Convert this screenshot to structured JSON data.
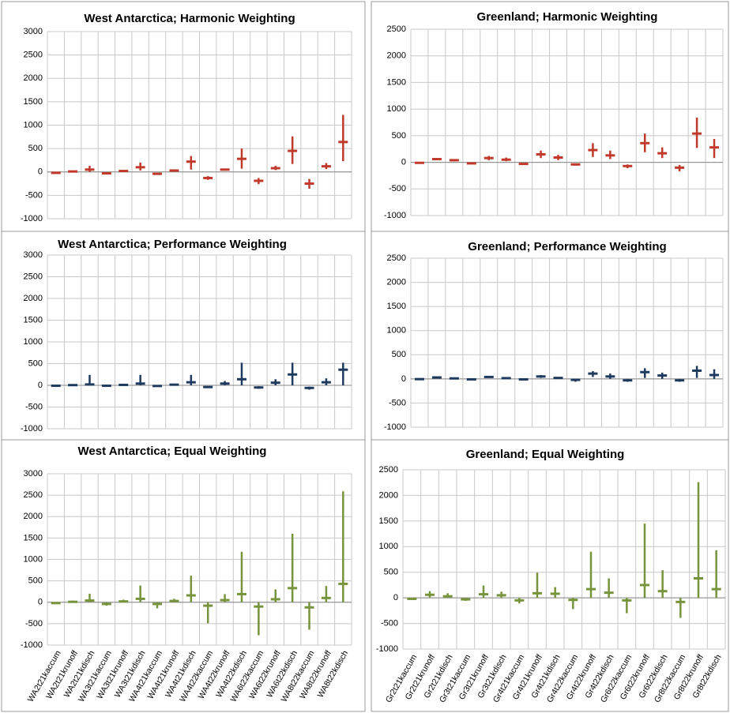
{
  "chart_data": [
    {
      "type": "errorbar",
      "title": "West Antarctica; Harmonic Weighting",
      "color": "#c0392b",
      "values": [
        -20,
        10,
        50,
        -30,
        20,
        100,
        -40,
        30,
        220,
        -130,
        50,
        280,
        -190,
        80,
        450,
        -250,
        120,
        640
      ],
      "low": [
        -30,
        0,
        0,
        -40,
        15,
        30,
        -50,
        20,
        50,
        -170,
        30,
        70,
        -260,
        40,
        170,
        -360,
        60,
        230
      ],
      "high": [
        -10,
        20,
        130,
        -20,
        30,
        200,
        -30,
        40,
        340,
        -90,
        70,
        500,
        -130,
        130,
        760,
        -150,
        190,
        1220
      ],
      "ylim": [
        -1000,
        3000
      ],
      "yticks": [
        -1000,
        -500,
        0,
        500,
        1000,
        1500,
        2000,
        2500,
        3000
      ],
      "grid": true
    },
    {
      "type": "errorbar",
      "title": "Greenland; Harmonic Weighting",
      "color": "#c0392b",
      "values": [
        -10,
        60,
        40,
        -20,
        80,
        50,
        -30,
        150,
        90,
        -40,
        230,
        130,
        -70,
        360,
        170,
        -100,
        540,
        280
      ],
      "low": [
        -20,
        40,
        20,
        -30,
        40,
        20,
        -40,
        80,
        40,
        -60,
        100,
        60,
        -110,
        190,
        80,
        -170,
        270,
        80
      ],
      "high": [
        0,
        80,
        60,
        -10,
        120,
        90,
        -20,
        220,
        140,
        -20,
        360,
        220,
        -40,
        540,
        280,
        -50,
        840,
        440
      ],
      "ylim": [
        -1000,
        2500
      ],
      "yticks": [
        -1000,
        -500,
        0,
        500,
        1000,
        1500,
        2000,
        2500
      ],
      "grid": true
    },
    {
      "type": "errorbar",
      "title": "West Antarctica; Performance Weighting",
      "color": "#1f3a5f",
      "values": [
        -10,
        5,
        20,
        -10,
        10,
        40,
        -15,
        15,
        70,
        -40,
        40,
        140,
        -50,
        60,
        250,
        -60,
        70,
        360
      ],
      "low": [
        -20,
        0,
        0,
        -20,
        0,
        0,
        -20,
        0,
        0,
        -60,
        0,
        0,
        -80,
        0,
        0,
        -100,
        0,
        0
      ],
      "high": [
        0,
        10,
        240,
        0,
        20,
        240,
        0,
        30,
        240,
        -20,
        100,
        520,
        -20,
        140,
        520,
        -30,
        160,
        520
      ],
      "ylim": [
        -1000,
        3000
      ],
      "yticks": [
        -1000,
        -500,
        0,
        500,
        1000,
        1500,
        2000,
        2500,
        3000
      ],
      "grid": true
    },
    {
      "type": "errorbar",
      "title": "Greenland; Performance Weighting",
      "color": "#1f3a5f",
      "values": [
        -5,
        30,
        10,
        -10,
        40,
        15,
        -10,
        50,
        20,
        -20,
        110,
        50,
        -30,
        140,
        70,
        -30,
        170,
        80
      ],
      "low": [
        -10,
        10,
        0,
        -20,
        20,
        0,
        -20,
        20,
        0,
        -60,
        40,
        0,
        -60,
        20,
        0,
        -60,
        20,
        0
      ],
      "high": [
        0,
        40,
        20,
        0,
        60,
        30,
        0,
        80,
        40,
        0,
        160,
        110,
        0,
        220,
        130,
        0,
        270,
        200
      ],
      "ylim": [
        -1000,
        2500
      ],
      "yticks": [
        -1000,
        -500,
        0,
        500,
        1000,
        1500,
        2000,
        2500
      ],
      "grid": true
    },
    {
      "type": "errorbar",
      "title": "West Antarctica; Equal Weighting",
      "color": "#77933c",
      "categories": [
        "WA2t21kaccum",
        "WA2t21krunoff",
        "WA2t21kdisch",
        "WA3t21kaccum",
        "WA3t21krunoff",
        "WA3t21kdisch",
        "WA4t21kaccum",
        "WA4t21krunoff",
        "WA4t21kdisch",
        "WA4t22kaccum",
        "WA4t22krunoff",
        "WA4t22kdisch",
        "WA6t22kaccum",
        "WA6t22krunoff",
        "WA6t22kdisch",
        "WA8t22kaccum",
        "WA8t22krunoff",
        "WA8t22kdisch"
      ],
      "values": [
        -20,
        10,
        40,
        -40,
        20,
        80,
        -40,
        30,
        160,
        -80,
        50,
        190,
        -100,
        70,
        330,
        -120,
        100,
        430
      ],
      "low": [
        -40,
        0,
        0,
        -80,
        0,
        0,
        -140,
        0,
        0,
        -490,
        0,
        0,
        -770,
        0,
        0,
        -640,
        0,
        0
      ],
      "high": [
        0,
        40,
        200,
        0,
        60,
        390,
        0,
        80,
        620,
        0,
        190,
        1180,
        0,
        300,
        1600,
        0,
        380,
        2590
      ],
      "ylim": [
        -1000,
        3000
      ],
      "yticks": [
        -1000,
        -500,
        0,
        500,
        1000,
        1500,
        2000,
        2500,
        3000
      ],
      "grid": true
    },
    {
      "type": "errorbar",
      "title": "Greenland; Equal Weighting",
      "color": "#77933c",
      "categories": [
        "Gr2t21kaccum",
        "Gr2t21krunoff",
        "Gr2t21kdisch",
        "Gr3t21kaccum",
        "Gr3t21krunoff",
        "Gr3t21kdisch",
        "Gr4t21kaccum",
        "Gr4t21krunoff",
        "Gr4t21kdisch",
        "Gr4t22kaccum",
        "Gr4t22krunoff",
        "Gr4t22kdisch",
        "Gr6t22kaccum",
        "Gr6t22krunoff",
        "Gr6t22kdisch",
        "Gr8t22kaccum",
        "Gr8t22krunoff",
        "Gr8t22kdisch"
      ],
      "values": [
        -20,
        60,
        30,
        -30,
        70,
        50,
        -50,
        90,
        80,
        -40,
        170,
        100,
        -50,
        250,
        130,
        -80,
        380,
        170
      ],
      "low": [
        -40,
        0,
        0,
        -60,
        0,
        0,
        -110,
        0,
        0,
        -220,
        0,
        0,
        -300,
        0,
        0,
        -390,
        0,
        0
      ],
      "high": [
        0,
        130,
        90,
        0,
        240,
        120,
        0,
        490,
        210,
        0,
        900,
        380,
        0,
        1450,
        540,
        0,
        2260,
        930
      ],
      "ylim": [
        -1000,
        2500
      ],
      "yticks": [
        -1000,
        -500,
        0,
        500,
        1000,
        1500,
        2000,
        2500
      ],
      "grid": true
    }
  ]
}
